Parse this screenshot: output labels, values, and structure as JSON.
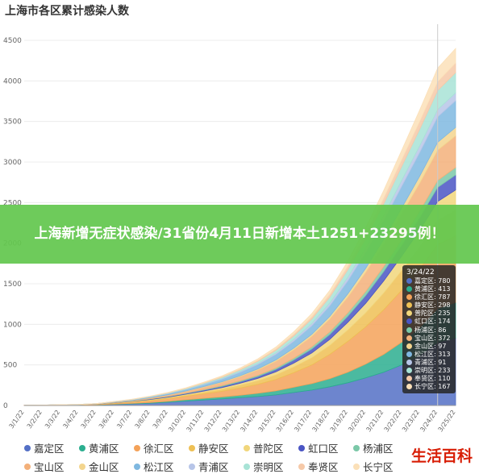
{
  "title": "上海市各区累计感染人数",
  "banner_text": "上海新增无症状感染/31省份4月11日新增本土1251+23295例！",
  "watermark": "生活百科",
  "chart_data": {
    "type": "area",
    "stacked": true,
    "title": "上海市各区累计感染人数",
    "xlabel": "",
    "ylabel": "",
    "ylim": [
      0,
      4500
    ],
    "yticks": [
      0,
      500,
      1000,
      1500,
      2000,
      2500,
      3000,
      3500,
      4000,
      4500
    ],
    "grid": true,
    "legend_position": "bottom",
    "x": [
      "3/1/22",
      "3/2/22",
      "3/3/22",
      "3/4/22",
      "3/5/22",
      "3/6/22",
      "3/7/22",
      "3/8/22",
      "3/9/22",
      "3/10/22",
      "3/11/22",
      "3/12/22",
      "3/13/22",
      "3/14/22",
      "3/15/22",
      "3/16/22",
      "3/17/22",
      "3/18/22",
      "3/19/22",
      "3/20/22",
      "3/21/22",
      "3/22/22",
      "3/23/22",
      "3/24/22",
      "3/25/22"
    ],
    "series": [
      {
        "name": "嘉定区",
        "color": "#5470c6",
        "values": [
          2,
          3,
          4,
          5,
          8,
          14,
          20,
          28,
          40,
          55,
          68,
          80,
          95,
          110,
          130,
          160,
          190,
          230,
          280,
          340,
          410,
          500,
          620,
          780,
          830
        ]
      },
      {
        "name": "黄浦区",
        "color": "#2bae8f",
        "values": [
          0,
          0,
          1,
          1,
          2,
          4,
          6,
          9,
          12,
          16,
          20,
          25,
          30,
          40,
          50,
          65,
          80,
          100,
          130,
          170,
          220,
          280,
          340,
          413,
          440
        ]
      },
      {
        "name": "徐汇区",
        "color": "#f4a259",
        "values": [
          1,
          2,
          2,
          3,
          5,
          10,
          15,
          22,
          30,
          42,
          55,
          70,
          90,
          110,
          140,
          180,
          230,
          300,
          380,
          460,
          550,
          640,
          720,
          787,
          820
        ]
      },
      {
        "name": "静安区",
        "color": "#eec055",
        "values": [
          0,
          0,
          1,
          1,
          2,
          4,
          6,
          9,
          12,
          15,
          20,
          26,
          34,
          44,
          56,
          70,
          88,
          110,
          140,
          170,
          205,
          240,
          270,
          298,
          315
        ]
      },
      {
        "name": "普陀区",
        "color": "#f1d67b",
        "values": [
          0,
          0,
          0,
          1,
          1,
          2,
          4,
          6,
          8,
          11,
          15,
          19,
          24,
          30,
          38,
          48,
          60,
          75,
          95,
          120,
          150,
          180,
          210,
          235,
          250
        ]
      },
      {
        "name": "虹口区",
        "color": "#4a55c4",
        "values": [
          0,
          0,
          0,
          0,
          1,
          2,
          3,
          5,
          7,
          9,
          12,
          15,
          19,
          24,
          30,
          38,
          48,
          60,
          75,
          95,
          115,
          135,
          155,
          174,
          185
        ]
      },
      {
        "name": "杨浦区",
        "color": "#7bc8a8",
        "values": [
          0,
          0,
          0,
          0,
          0,
          1,
          2,
          3,
          4,
          5,
          7,
          9,
          11,
          14,
          17,
          21,
          26,
          32,
          40,
          50,
          60,
          70,
          78,
          86,
          92
        ]
      },
      {
        "name": "宝山区",
        "color": "#f3b07a",
        "values": [
          0,
          0,
          1,
          1,
          2,
          4,
          7,
          11,
          16,
          22,
          30,
          40,
          52,
          66,
          84,
          105,
          130,
          160,
          195,
          235,
          275,
          315,
          345,
          372,
          390
        ]
      },
      {
        "name": "金山区",
        "color": "#f3d58e",
        "values": [
          0,
          0,
          0,
          0,
          0,
          1,
          1,
          2,
          3,
          4,
          6,
          8,
          10,
          13,
          16,
          20,
          25,
          31,
          40,
          50,
          62,
          74,
          86,
          97,
          104
        ]
      },
      {
        "name": "松江区",
        "color": "#7fb8e0",
        "values": [
          0,
          0,
          1,
          1,
          2,
          4,
          6,
          9,
          13,
          18,
          24,
          32,
          42,
          54,
          68,
          85,
          105,
          130,
          160,
          195,
          230,
          265,
          292,
          313,
          330
        ]
      },
      {
        "name": "青浦区",
        "color": "#b7c5e8",
        "values": [
          0,
          0,
          0,
          0,
          0,
          1,
          2,
          3,
          4,
          5,
          7,
          9,
          11,
          14,
          18,
          23,
          29,
          36,
          45,
          55,
          65,
          75,
          84,
          91,
          96
        ]
      },
      {
        "name": "崇明区",
        "color": "#a8e3d6",
        "values": [
          0,
          0,
          0,
          0,
          0,
          1,
          2,
          3,
          5,
          7,
          10,
          14,
          19,
          25,
          33,
          43,
          56,
          72,
          92,
          115,
          142,
          170,
          203,
          233,
          250
        ]
      },
      {
        "name": "奉贤区",
        "color": "#f6c9a8",
        "values": [
          0,
          0,
          0,
          0,
          0,
          1,
          1,
          2,
          3,
          4,
          6,
          8,
          10,
          13,
          17,
          22,
          28,
          36,
          46,
          58,
          70,
          84,
          97,
          110,
          118
        ]
      },
      {
        "name": "长宁区",
        "color": "#fbe0b8",
        "values": [
          0,
          0,
          0,
          0,
          0,
          1,
          2,
          3,
          4,
          6,
          8,
          11,
          14,
          18,
          23,
          30,
          38,
          48,
          61,
          77,
          95,
          115,
          140,
          167,
          180
        ]
      }
    ],
    "tooltip": {
      "date": "3/24/22",
      "rows": [
        {
          "name": "嘉定区",
          "value": "780",
          "color": "#5470c6"
        },
        {
          "name": "黄浦区",
          "value": "413",
          "color": "#2bae8f"
        },
        {
          "name": "徐汇区",
          "value": "787",
          "color": "#f4a259"
        },
        {
          "name": "静安区",
          "value": "298",
          "color": "#eec055"
        },
        {
          "name": "普陀区",
          "value": "235",
          "color": "#f1d67b"
        },
        {
          "name": "虹口区",
          "value": "174",
          "color": "#4a55c4"
        },
        {
          "name": "杨浦区",
          "value": "86",
          "color": "#7bc8a8"
        },
        {
          "name": "宝山区",
          "value": "372",
          "color": "#f3b07a"
        },
        {
          "name": "金山区",
          "value": "97",
          "color": "#f3d58e"
        },
        {
          "name": "松江区",
          "value": "313",
          "color": "#7fb8e0"
        },
        {
          "name": "青浦区",
          "value": "91",
          "color": "#b7c5e8"
        },
        {
          "name": "崇明区",
          "value": "233",
          "color": "#a8e3d6"
        },
        {
          "name": "奉贤区",
          "value": "110",
          "color": "#f6c9a8"
        },
        {
          "name": "长宁区",
          "value": "167",
          "color": "#fbe0b8"
        }
      ]
    },
    "legend": [
      {
        "name": "嘉定区",
        "color": "#5470c6"
      },
      {
        "name": "黄浦区",
        "color": "#2bae8f"
      },
      {
        "name": "徐汇区",
        "color": "#f4a259"
      },
      {
        "name": "静安区",
        "color": "#eec055"
      },
      {
        "name": "普陀区",
        "color": "#f1d67b"
      },
      {
        "name": "虹口区",
        "color": "#4a55c4"
      },
      {
        "name": "杨浦区",
        "color": "#7bc8a8"
      },
      {
        "name": "宝山区",
        "color": "#f3b07a"
      },
      {
        "name": "金山区",
        "color": "#f3d58e"
      },
      {
        "name": "松江区",
        "color": "#7fb8e0"
      },
      {
        "name": "青浦区",
        "color": "#b7c5e8"
      },
      {
        "name": "崇明区",
        "color": "#a8e3d6"
      },
      {
        "name": "奉贤区",
        "color": "#f6c9a8"
      },
      {
        "name": "长宁区",
        "color": "#fbe0b8"
      }
    ]
  }
}
